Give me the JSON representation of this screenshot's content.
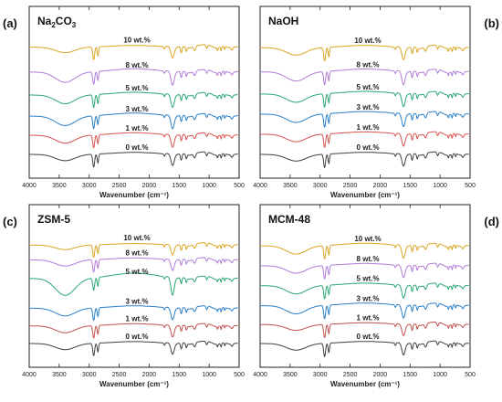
{
  "chart_data": [
    {
      "type": "line",
      "panel_label": "(a)",
      "title_parts": [
        "Na",
        "2",
        "CO",
        "3"
      ],
      "xlabel": "Wavenumber (cm⁻¹)",
      "xlim": [
        4000,
        500
      ],
      "xticks": [
        "4000",
        "3500",
        "3000",
        "2500",
        "2000",
        "1500",
        "1000",
        "500"
      ],
      "series": [
        {
          "name": "0 wt.%",
          "color": "#404040",
          "offset": 0.0,
          "scale": 0.8
        },
        {
          "name": "1 wt.%",
          "color": "#d9534f",
          "offset": 1.0,
          "scale": 1.0
        },
        {
          "name": "3 wt.%",
          "color": "#2a7fc8",
          "offset": 2.0,
          "scale": 1.2
        },
        {
          "name": "5 wt.%",
          "color": "#2aa772",
          "offset": 3.1,
          "scale": 1.1
        },
        {
          "name": "8 wt.%",
          "color": "#b07cd8",
          "offset": 4.3,
          "scale": 1.3
        },
        {
          "name": "10 wt.%",
          "color": "#d9a520",
          "offset": 5.6,
          "scale": 0.7
        }
      ]
    },
    {
      "type": "line",
      "panel_label": "(b)",
      "title_parts": [
        "NaOH"
      ],
      "xlabel": "Wavenumber (cm⁻¹)",
      "xlim": [
        4000,
        500
      ],
      "xticks": [
        "4000",
        "3500",
        "3000",
        "2500",
        "2000",
        "1500",
        "1000",
        "500"
      ],
      "series": [
        {
          "name": "0 wt.%",
          "color": "#404040",
          "offset": 0.0,
          "scale": 0.8
        },
        {
          "name": "1 wt.%",
          "color": "#d9534f",
          "offset": 1.0,
          "scale": 0.9
        },
        {
          "name": "3 wt.%",
          "color": "#2a7fc8",
          "offset": 2.0,
          "scale": 1.0
        },
        {
          "name": "5 wt.%",
          "color": "#2aa772",
          "offset": 3.0,
          "scale": 1.0
        },
        {
          "name": "8 wt.%",
          "color": "#b07cd8",
          "offset": 4.1,
          "scale": 1.1
        },
        {
          "name": "10 wt.%",
          "color": "#d9a520",
          "offset": 5.3,
          "scale": 0.9
        }
      ]
    },
    {
      "type": "line",
      "panel_label": "(c)",
      "title_parts": [
        "ZSM-5"
      ],
      "xlabel": "Wavenumber (cm⁻¹)",
      "xlim": [
        4000,
        500
      ],
      "xticks": [
        "4000",
        "3500",
        "3000",
        "2500",
        "2000",
        "1500",
        "1000",
        "500"
      ],
      "series": [
        {
          "name": "0 wt.%",
          "color": "#404040",
          "offset": 0.0,
          "scale": 0.8
        },
        {
          "name": "1 wt.%",
          "color": "#c0504d",
          "offset": 0.95,
          "scale": 0.9
        },
        {
          "name": "3 wt.%",
          "color": "#2a7fc8",
          "offset": 1.9,
          "scale": 1.0
        },
        {
          "name": "5 wt.%",
          "color": "#2aa772",
          "offset": 3.5,
          "scale": 2.2
        },
        {
          "name": "8 wt.%",
          "color": "#b07cd8",
          "offset": 4.5,
          "scale": 0.8
        },
        {
          "name": "10 wt.%",
          "color": "#d9a520",
          "offset": 5.3,
          "scale": 0.6
        }
      ]
    },
    {
      "type": "line",
      "panel_label": "(d)",
      "title_parts": [
        "MCM-48"
      ],
      "xlabel": "Wavenumber (cm⁻¹)",
      "xlim": [
        4000,
        500
      ],
      "xticks": [
        "4000",
        "3500",
        "3000",
        "2500",
        "2000",
        "1500",
        "1000",
        "500"
      ],
      "series": [
        {
          "name": "0 wt.%",
          "color": "#404040",
          "offset": 0.0,
          "scale": 0.8
        },
        {
          "name": "1 wt.%",
          "color": "#c0504d",
          "offset": 0.95,
          "scale": 0.7
        },
        {
          "name": "3 wt.%",
          "color": "#2a7fc8",
          "offset": 1.9,
          "scale": 1.0
        },
        {
          "name": "5 wt.%",
          "color": "#2aa772",
          "offset": 2.9,
          "scale": 1.0
        },
        {
          "name": "8 wt.%",
          "color": "#b07cd8",
          "offset": 3.9,
          "scale": 0.9
        },
        {
          "name": "10 wt.%",
          "color": "#d9a520",
          "offset": 4.9,
          "scale": 1.0
        }
      ]
    }
  ]
}
